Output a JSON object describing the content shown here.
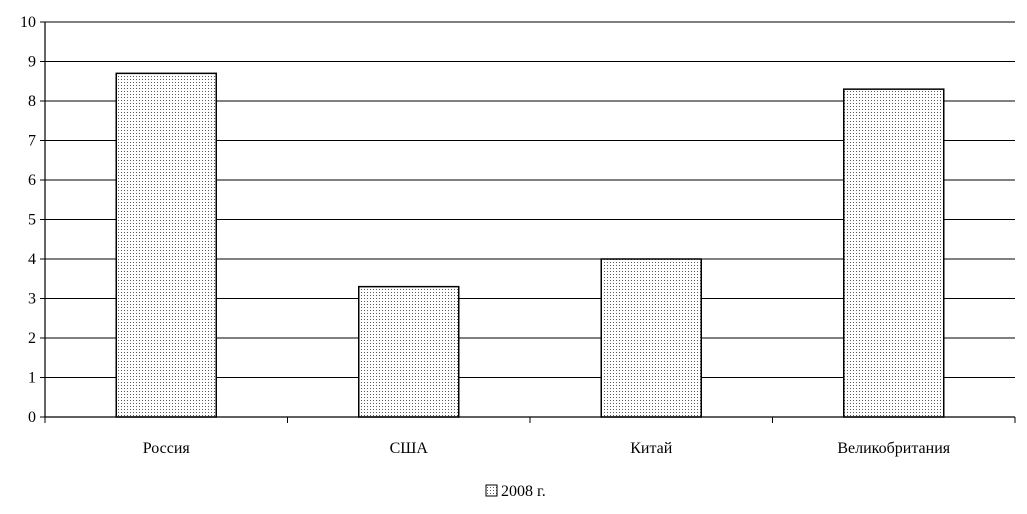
{
  "chart_data": {
    "type": "bar",
    "categories": [
      "Россия",
      "США",
      "Китай",
      "Великобритания"
    ],
    "series": [
      {
        "name": "2008 г.",
        "values": [
          8.7,
          3.3,
          4.0,
          8.3
        ]
      }
    ],
    "title": "",
    "xlabel": "",
    "ylabel": "",
    "ylim": [
      0,
      10
    ],
    "yticks": [
      "0",
      "1",
      "2",
      "3",
      "4",
      "5",
      "6",
      "7",
      "8",
      "9",
      "10"
    ],
    "grid": true,
    "legend_position": "bottom-center",
    "bar_fill": "dotted",
    "colors": {
      "bar_fill": "#ffffff",
      "bar_dots": "#5a5a5a",
      "bar_stroke": "#000000",
      "axis": "#000000",
      "grid": "#000000"
    }
  }
}
